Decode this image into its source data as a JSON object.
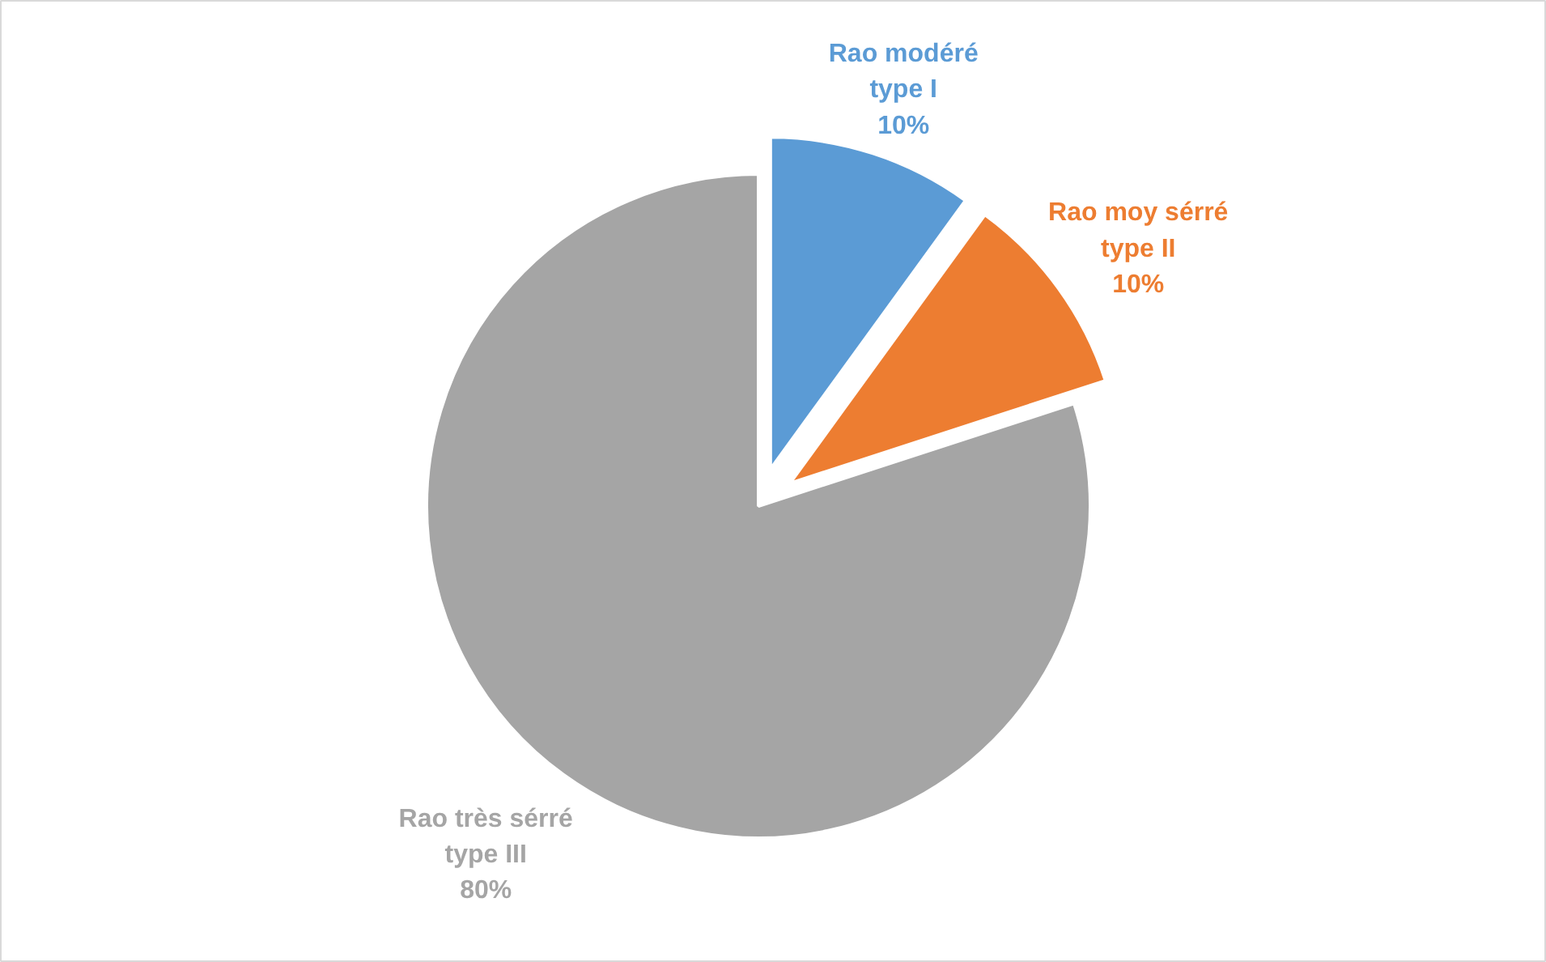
{
  "chart_data": {
    "type": "pie",
    "categories": [
      "Rao modéré type I",
      "Rao moy sérré type II",
      "Rao très sérré type III"
    ],
    "values": [
      10,
      10,
      80
    ],
    "colors": [
      "#5b9bd5",
      "#ed7d31",
      "#a5a5a5"
    ],
    "value_labels": [
      "10%",
      "10%",
      "80%"
    ]
  }
}
